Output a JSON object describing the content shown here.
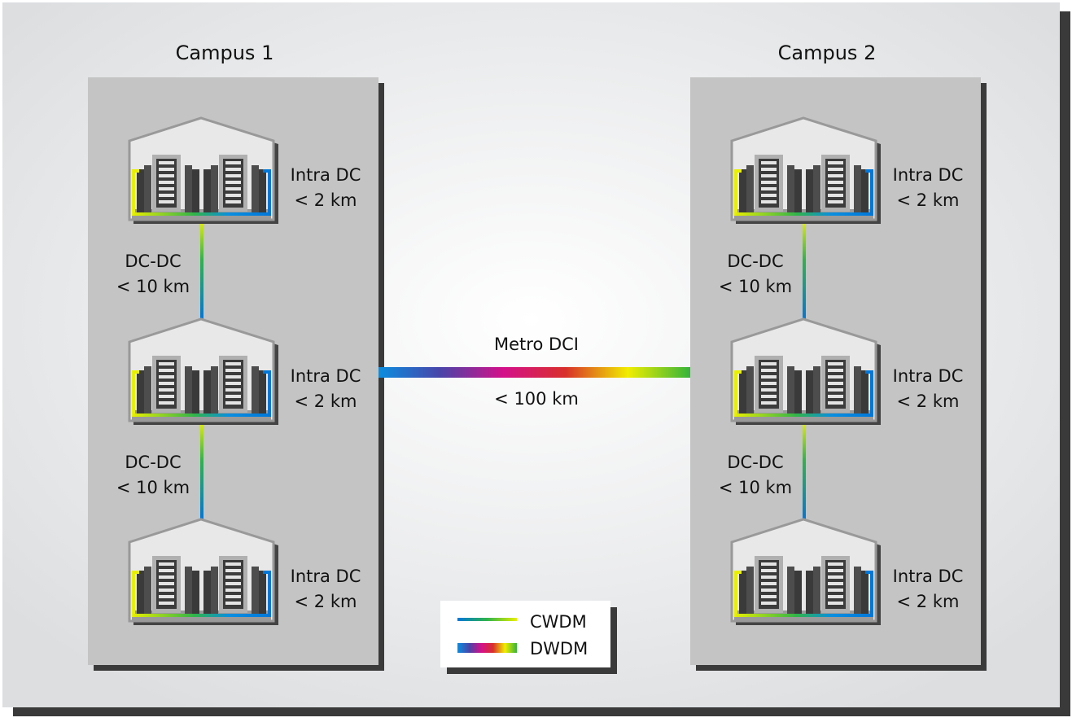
{
  "campuses": [
    {
      "title": "Campus 1",
      "buildings": [
        {
          "label": "Intra DC",
          "distance": "< 2 km"
        },
        {
          "label": "Intra DC",
          "distance": "< 2 km"
        },
        {
          "label": "Intra DC",
          "distance": "< 2 km"
        }
      ],
      "links": [
        {
          "label": "DC-DC",
          "distance": "< 10 km"
        },
        {
          "label": "DC-DC",
          "distance": "< 10 km"
        }
      ]
    },
    {
      "title": "Campus 2",
      "buildings": [
        {
          "label": "Intra DC",
          "distance": "< 2 km"
        },
        {
          "label": "Intra DC",
          "distance": "< 2 km"
        },
        {
          "label": "Intra DC",
          "distance": "< 2 km"
        }
      ],
      "links": [
        {
          "label": "DC-DC",
          "distance": "< 10 km"
        },
        {
          "label": "DC-DC",
          "distance": "< 10 km"
        }
      ]
    }
  ],
  "metro": {
    "label": "Metro DCI",
    "distance": "< 100 km"
  },
  "legend": {
    "items": [
      {
        "label": "CWDM",
        "style": "thin spectrum line blue-green-yellow"
      },
      {
        "label": "DWDM",
        "style": "thick spectrum line blue-magenta-red-yellow-green"
      }
    ]
  },
  "colors": {
    "cwdm": [
      "#0077d9",
      "#2fb44a",
      "#e8f000"
    ],
    "dwdm": [
      "#0a6fd6",
      "#5a3fa0",
      "#d4108a",
      "#d8302a",
      "#f0ee00",
      "#33b43a"
    ]
  }
}
